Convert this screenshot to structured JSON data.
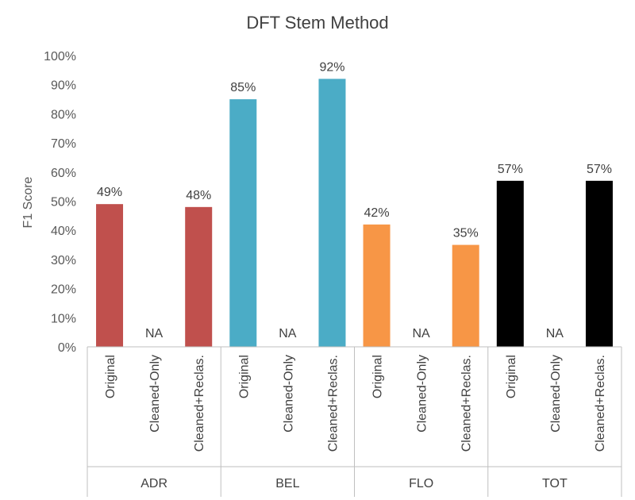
{
  "chart_data": {
    "type": "bar",
    "title": "DFT Stem Method",
    "ylabel": "F1 Score",
    "xlabel": "",
    "ylim": [
      0,
      100
    ],
    "y_ticks": [
      "0%",
      "10%",
      "20%",
      "30%",
      "40%",
      "50%",
      "60%",
      "70%",
      "80%",
      "90%",
      "100%"
    ],
    "grid": false,
    "legend": "none",
    "na_label": "NA",
    "groups": [
      {
        "name": "ADR",
        "color": "#C0504D",
        "bars": [
          {
            "category": "Original",
            "value": 49,
            "label": "49%"
          },
          {
            "category": "Cleaned-Only",
            "value": null,
            "label": "NA"
          },
          {
            "category": "Cleaned+Reclas.",
            "value": 48,
            "label": "48%"
          }
        ]
      },
      {
        "name": "BEL",
        "color": "#4BACC6",
        "bars": [
          {
            "category": "Original",
            "value": 85,
            "label": "85%"
          },
          {
            "category": "Cleaned-Only",
            "value": null,
            "label": "NA"
          },
          {
            "category": "Cleaned+Reclas.",
            "value": 92,
            "label": "92%"
          }
        ]
      },
      {
        "name": "FLO",
        "color": "#F79646",
        "bars": [
          {
            "category": "Original",
            "value": 42,
            "label": "42%"
          },
          {
            "category": "Cleaned-Only",
            "value": null,
            "label": "NA"
          },
          {
            "category": "Cleaned+Reclas.",
            "value": 35,
            "label": "35%"
          }
        ]
      },
      {
        "name": "TOT",
        "color": "#000000",
        "bars": [
          {
            "category": "Original",
            "value": 57,
            "label": "57%"
          },
          {
            "category": "Cleaned-Only",
            "value": null,
            "label": "NA"
          },
          {
            "category": "Cleaned+Reclas.",
            "value": 57,
            "label": "57%"
          }
        ]
      }
    ]
  }
}
